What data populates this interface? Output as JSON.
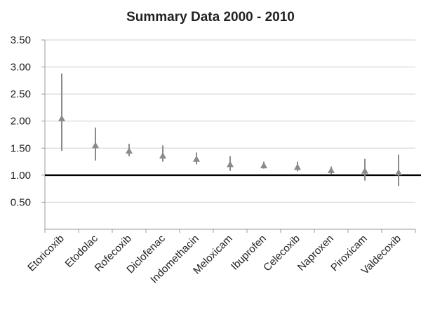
{
  "chart_data": {
    "type": "scatter",
    "title": "Summary Data 2000 - 2010",
    "xlabel": "",
    "ylabel": "",
    "ylim": [
      0,
      3.5
    ],
    "yticks": [
      "0.50",
      "1.00",
      "1.50",
      "2.00",
      "2.50",
      "3.00",
      "3.50"
    ],
    "reference_line": 1.0,
    "grid": true,
    "legend": "none",
    "categories": [
      "Etoricoxib",
      "Etodolac",
      "Rofecoxib",
      "Diclofenac",
      "Indomethacin",
      "Meloxicam",
      "Ibuprofen",
      "Celecoxib",
      "Naproxen",
      "Piroxicam",
      "Valdecoxib"
    ],
    "series": [
      {
        "point": [
          2.05,
          1.55,
          1.45,
          1.36,
          1.3,
          1.2,
          1.18,
          1.15,
          1.09,
          1.08,
          1.05
        ],
        "lower": [
          1.45,
          1.27,
          1.35,
          1.25,
          1.2,
          1.08,
          1.12,
          1.07,
          1.02,
          0.9,
          0.8
        ],
        "upper": [
          2.88,
          1.88,
          1.58,
          1.55,
          1.42,
          1.35,
          1.25,
          1.25,
          1.16,
          1.3,
          1.38
        ]
      }
    ],
    "colors": {
      "marker": "#8a8a8a",
      "reference": "#000000",
      "grid": "#cfcfcf"
    }
  }
}
